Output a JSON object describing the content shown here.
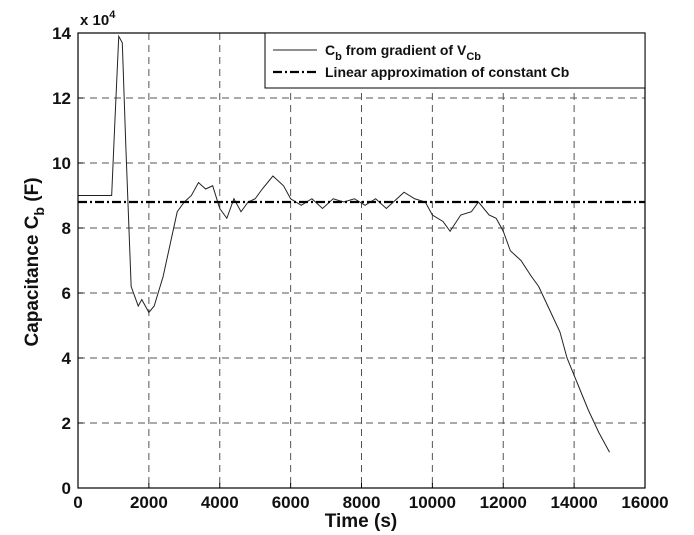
{
  "chart_data": {
    "type": "line",
    "xlabel": "Time (s)",
    "ylabel": [
      "Capacitance C",
      "b",
      " (F)"
    ],
    "y_multiplier": [
      "x 10",
      "4"
    ],
    "xlim": [
      0,
      16000
    ],
    "xticks": [
      0,
      2000,
      4000,
      6000,
      8000,
      10000,
      12000,
      14000,
      16000
    ],
    "ylim": [
      0,
      14
    ],
    "yticks": [
      0,
      2,
      4,
      6,
      8,
      10,
      12,
      14
    ],
    "grid": true,
    "legend": "upper right",
    "series": [
      {
        "name": [
          "C",
          "b",
          " from gradient of V",
          "Cb"
        ],
        "color": "#222222",
        "style": "solid",
        "x": [
          0,
          950,
          1050,
          1150,
          1250,
          1350,
          1500,
          1700,
          1800,
          2000,
          2150,
          2400,
          2600,
          2800,
          3000,
          3200,
          3400,
          3600,
          3800,
          4000,
          4200,
          4400,
          4600,
          4800,
          5000,
          5200,
          5500,
          5800,
          6000,
          6300,
          6600,
          6900,
          7200,
          7500,
          7800,
          8100,
          8400,
          8700,
          9000,
          9200,
          9500,
          9800,
          10000,
          10300,
          10500,
          10800,
          11100,
          11300,
          11600,
          11800,
          12000,
          12200,
          12500,
          12800,
          13000,
          13300,
          13600,
          13800,
          14100,
          14400,
          14700,
          15000
        ],
        "values": [
          9.0,
          9.0,
          11.5,
          13.9,
          13.7,
          10.5,
          6.2,
          5.6,
          5.8,
          5.4,
          5.6,
          6.5,
          7.5,
          8.5,
          8.8,
          9.0,
          9.4,
          9.2,
          9.3,
          8.6,
          8.3,
          8.9,
          8.5,
          8.8,
          8.9,
          9.2,
          9.6,
          9.3,
          8.9,
          8.7,
          8.9,
          8.6,
          8.9,
          8.8,
          8.9,
          8.7,
          8.9,
          8.6,
          8.9,
          9.1,
          8.9,
          8.8,
          8.4,
          8.2,
          7.9,
          8.4,
          8.5,
          8.8,
          8.4,
          8.3,
          7.9,
          7.3,
          7.0,
          6.5,
          6.2,
          5.5,
          4.8,
          4.0,
          3.2,
          2.4,
          1.7,
          1.1
        ]
      },
      {
        "name": [
          "Linear approximation of constant Cb"
        ],
        "color": "#000000",
        "style": "dashdot",
        "x": [
          0,
          16000
        ],
        "values": [
          8.8,
          8.8
        ]
      }
    ]
  }
}
